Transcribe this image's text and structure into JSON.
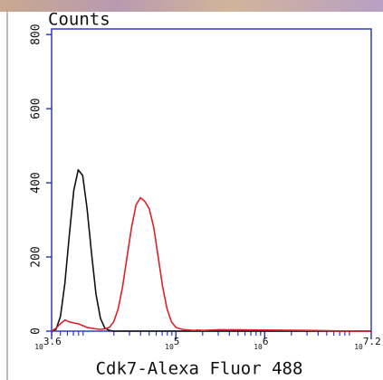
{
  "chart_data": {
    "type": "line",
    "title": "Counts",
    "x_label": "Cdk7-Alexa Fluor 488",
    "x_scale": "log10",
    "x": [
      3.6,
      3.65,
      3.7,
      3.75,
      3.8,
      3.85,
      3.9,
      3.95,
      4.0,
      4.05,
      4.1,
      4.15,
      4.2,
      4.25,
      4.3,
      4.35,
      4.4,
      4.45,
      4.5,
      4.55,
      4.6,
      4.65,
      4.7,
      4.75,
      4.8,
      4.85,
      4.9,
      4.95,
      5.0,
      5.05,
      5.1,
      5.15,
      5.2,
      5.25,
      5.3,
      5.5,
      6.0,
      6.5,
      7.0,
      7.2
    ],
    "series": [
      {
        "color": "#111111",
        "values": [
          0,
          5,
          40,
          130,
          260,
          380,
          435,
          420,
          330,
          210,
          100,
          35,
          8,
          2,
          0,
          0,
          0,
          0,
          0,
          0,
          0,
          0,
          0,
          0,
          0,
          0,
          0,
          0,
          0,
          0,
          0,
          0,
          0,
          0,
          0,
          0,
          0,
          0,
          0,
          0
        ]
      },
      {
        "color": "#e0202a",
        "values": [
          0,
          8,
          20,
          30,
          25,
          22,
          20,
          15,
          10,
          8,
          6,
          5,
          6,
          10,
          25,
          60,
          120,
          200,
          280,
          340,
          360,
          350,
          330,
          280,
          200,
          120,
          60,
          25,
          10,
          6,
          4,
          3,
          2,
          3,
          2,
          4,
          3,
          2,
          0,
          0
        ]
      }
    ],
    "xlim": [
      3.6,
      7.2
    ],
    "xticks": [
      {
        "value": 3.6,
        "label": "10"
      },
      {
        "value": 5,
        "label": "10"
      },
      {
        "value": 6,
        "label": "10"
      },
      {
        "value": 7.2,
        "label": "10"
      }
    ],
    "ylim": [
      0,
      815
    ],
    "yticks": [
      0,
      200,
      400,
      600,
      800
    ],
    "axis_color": "#2b3fc0"
  }
}
